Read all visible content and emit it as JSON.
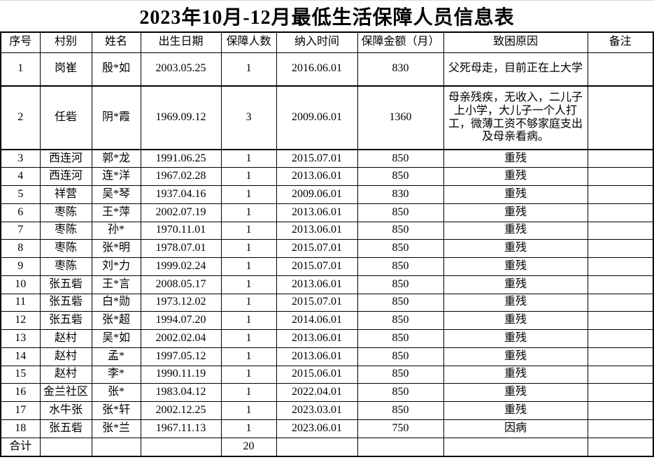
{
  "title": "2023年10月-12月最低生活保障人员信息表",
  "table": {
    "columns": [
      "序号",
      "村别",
      "姓名",
      "出生日期",
      "保障人数",
      "纳入时间",
      "保障金额（月）",
      "致困原因",
      "备注"
    ],
    "rows": [
      [
        "1",
        "岗崔",
        "殷*如",
        "2003.05.25",
        "1",
        "2016.06.01",
        "830",
        "父死母走，目前正在上大学",
        ""
      ],
      [
        "2",
        "任砦",
        "阴*霞",
        "1969.09.12",
        "3",
        "2009.06.01",
        "1360",
        "母亲残疾，无收入，二儿子上小学，大儿子一个人打工，微薄工资不够家庭支出及母亲看病。",
        ""
      ],
      [
        "3",
        "西连河",
        "郭*龙",
        "1991.06.25",
        "1",
        "2015.07.01",
        "850",
        "重残",
        ""
      ],
      [
        "4",
        "西连河",
        "连*洋",
        "1967.02.28",
        "1",
        "2013.06.01",
        "850",
        "重残",
        ""
      ],
      [
        "5",
        "祥营",
        "吴*琴",
        "1937.04.16",
        "1",
        "2009.06.01",
        "830",
        "重残",
        ""
      ],
      [
        "6",
        "枣陈",
        "王*萍",
        "2002.07.19",
        "1",
        "2013.06.01",
        "850",
        "重残",
        ""
      ],
      [
        "7",
        "枣陈",
        "孙*",
        "1970.11.01",
        "1",
        "2013.06.01",
        "850",
        "重残",
        ""
      ],
      [
        "8",
        "枣陈",
        "张*明",
        "1978.07.01",
        "1",
        "2015.07.01",
        "850",
        "重残",
        ""
      ],
      [
        "9",
        "枣陈",
        "刘*力",
        "1999.02.24",
        "1",
        "2015.07.01",
        "850",
        "重残",
        ""
      ],
      [
        "10",
        "张五砦",
        "王*言",
        "2008.05.17",
        "1",
        "2013.06.01",
        "850",
        "重残",
        ""
      ],
      [
        "11",
        "张五砦",
        "白*勋",
        "1973.12.02",
        "1",
        "2015.07.01",
        "850",
        "重残",
        ""
      ],
      [
        "12",
        "张五砦",
        "张*超",
        "1994.07.20",
        "1",
        "2014.06.01",
        "850",
        "重残",
        ""
      ],
      [
        "13",
        "赵村",
        "吴*如",
        "2002.02.04",
        "1",
        "2013.06.01",
        "850",
        "重残",
        ""
      ],
      [
        "14",
        "赵村",
        "孟*",
        "1997.05.12",
        "1",
        "2013.06.01",
        "850",
        "重残",
        ""
      ],
      [
        "15",
        "赵村",
        "李*",
        "1990.11.19",
        "1",
        "2015.06.01",
        "850",
        "重残",
        ""
      ],
      [
        "16",
        "金兰社区",
        "张*",
        "1983.04.12",
        "1",
        "2022.04.01",
        "850",
        "重残",
        ""
      ],
      [
        "17",
        "水牛张",
        "张*轩",
        "2002.12.25",
        "1",
        "2023.03.01",
        "850",
        "重残",
        ""
      ],
      [
        "18",
        "张五砦",
        "张*兰",
        "1967.11.13",
        "1",
        "2023.06.01",
        "750",
        "因病",
        ""
      ]
    ],
    "total_row": [
      "合计",
      "",
      "",
      "",
      "20",
      "",
      "",
      "",
      ""
    ]
  }
}
